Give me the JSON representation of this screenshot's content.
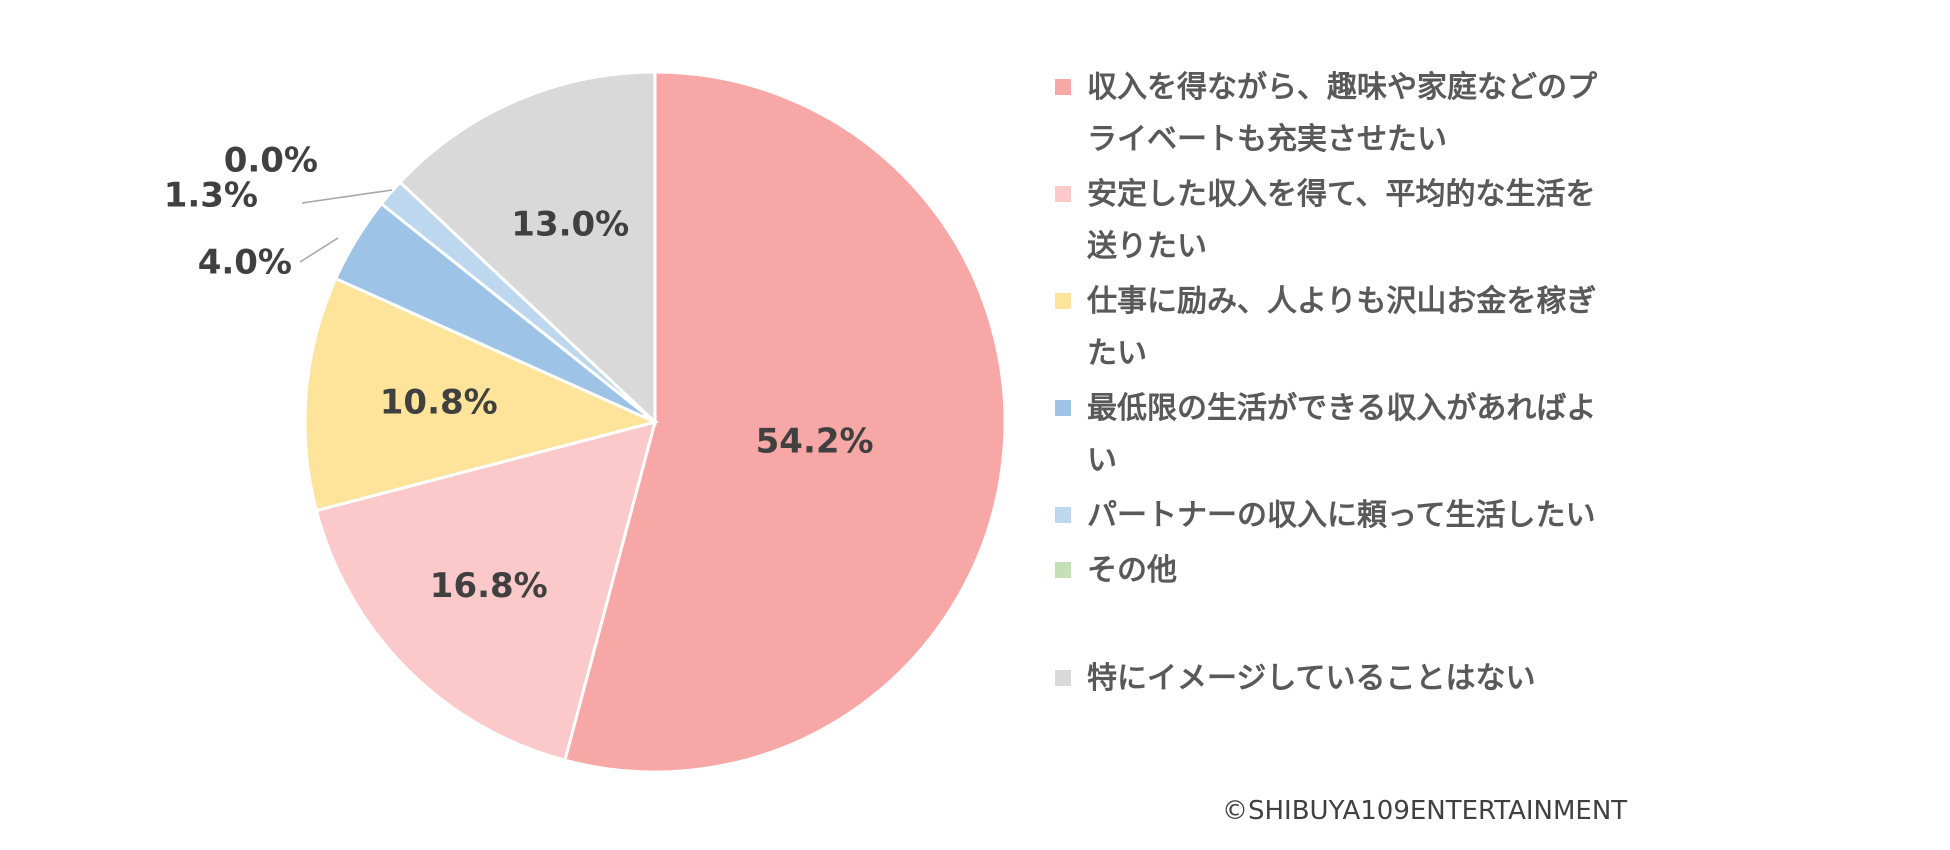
{
  "chart_data": {
    "type": "pie",
    "title": "",
    "start_angle": "12 o'clock",
    "direction": "clockwise",
    "legend_position": "right",
    "slices": [
      {
        "label": "収入を得ながら、趣味や家庭などのプライベートも充実させたい",
        "value": 54.2,
        "display": "54.2%",
        "color": "#F8A7A7"
      },
      {
        "label": "安定した収入を得て、平均的な生活を送りたい",
        "value": 16.8,
        "display": "16.8%",
        "color": "#FCC9CA"
      },
      {
        "label": "仕事に励み、人よりも沢山お金を稼ぎたい",
        "value": 10.8,
        "display": "10.8%",
        "color": "#FDE49A"
      },
      {
        "label": "最低限の生活ができる収入があればよい",
        "value": 4.0,
        "display": "4.0%",
        "color": "#9DC3E6"
      },
      {
        "label": "パートナーの収入に頼って生活したい",
        "value": 1.3,
        "display": "1.3%",
        "color": "#BDD7EE"
      },
      {
        "label": "その他",
        "value": 0.0,
        "display": "0.0%",
        "color": "#C5E0B4"
      },
      {
        "label": "特にイメージしていることはない",
        "value": 13.0,
        "display": "13.0%",
        "color": "#D9D9D9"
      }
    ]
  },
  "legend": {
    "items": [
      {
        "label": "収入を得ながら、趣味や家庭などのプライベートも充実させたい",
        "color": "#F8A7A7"
      },
      {
        "label": "安定した収入を得て、平均的な生活を送りたい",
        "color": "#FCC9CA"
      },
      {
        "label": "仕事に励み、人よりも沢山お金を稼ぎたい",
        "color": "#FDE49A"
      },
      {
        "label": "最低限の生活ができる収入があればよい",
        "color": "#9DC3E6"
      },
      {
        "label": "パートナーの収入に頼って生活したい",
        "color": "#BDD7EE"
      },
      {
        "label": "その他",
        "color": "#C5E0B4"
      },
      {
        "label": "特にイメージしていることはない",
        "color": "#D9D9D9"
      }
    ]
  },
  "copyright": "©SHIBUYA109ENTERTAINMENT"
}
